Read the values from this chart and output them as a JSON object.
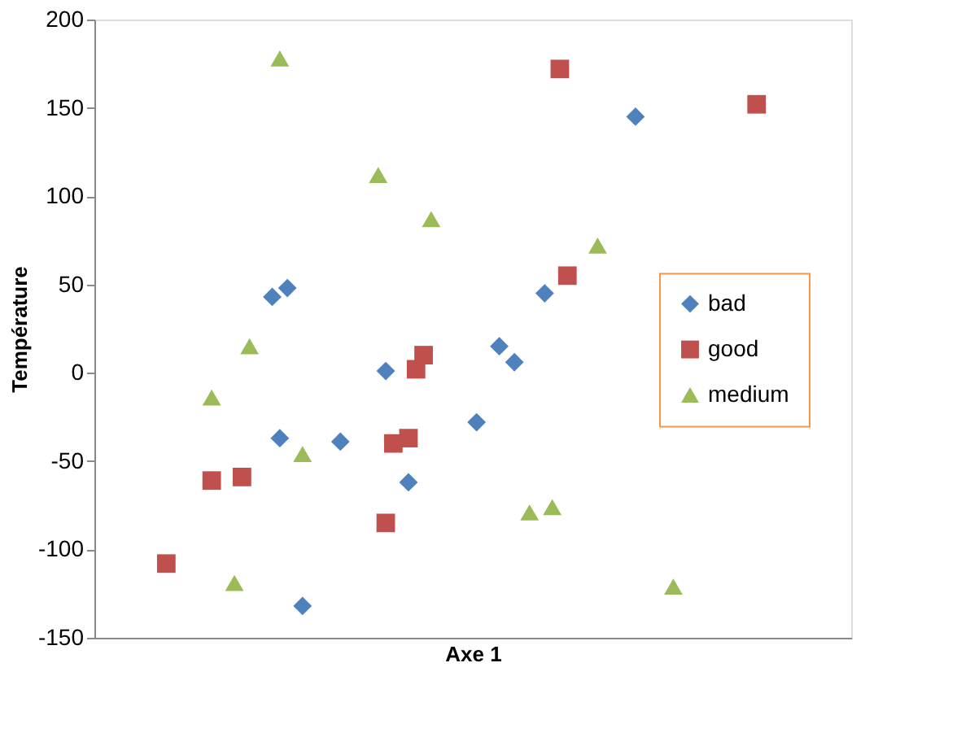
{
  "chart_data": {
    "type": "scatter",
    "xlabel": "Axe 1",
    "ylabel": "Température",
    "categories": [
      null,
      null,
      null,
      null,
      null,
      null,
      null,
      null,
      null,
      null,
      null,
      null,
      null,
      null,
      null,
      null,
      null,
      null,
      null,
      null,
      null,
      null,
      null,
      null,
      null,
      null,
      null,
      null,
      null,
      null,
      null,
      null,
      null,
      null,
      null,
      null,
      null,
      null,
      null,
      null,
      null,
      null,
      null,
      null,
      null,
      null,
      null,
      null,
      null,
      null,
      null,
      null,
      null,
      null,
      null,
      null,
      null,
      null,
      null,
      null,
      null,
      null,
      null,
      null,
      null,
      null,
      null,
      null,
      null,
      null,
      null,
      null,
      null,
      null,
      null,
      null,
      null,
      null,
      null,
      null,
      null,
      null,
      null,
      null,
      null,
      null,
      null,
      null,
      null,
      null,
      null,
      null,
      null,
      null,
      null,
      null,
      null,
      null,
      null,
      null
    ],
    "ylim": [
      -150,
      200
    ],
    "yticks": [
      -150,
      -100,
      -50,
      0,
      50,
      100,
      150,
      200
    ],
    "tick_labels": "y",
    "grid": false,
    "legend": "right",
    "series": [
      {
        "name": "bad",
        "color": "#4f81bd",
        "marker": "diamond",
        "values": [
          null,
          null,
          null,
          null,
          null,
          null,
          null,
          null,
          null,
          null,
          null,
          null,
          null,
          null,
          null,
          null,
          null,
          null,
          null,
          null,
          null,
          null,
          null,
          43,
          -37,
          48,
          null,
          -132,
          null,
          null,
          null,
          null,
          -39,
          null,
          null,
          null,
          null,
          null,
          1,
          null,
          null,
          -62,
          null,
          null,
          null,
          null,
          null,
          null,
          null,
          null,
          -28,
          null,
          null,
          15,
          null,
          6,
          null,
          null,
          null,
          45,
          null,
          null,
          null,
          null,
          null,
          null,
          null,
          null,
          null,
          null,
          null,
          145,
          null,
          null,
          null,
          null,
          null,
          null,
          null,
          null,
          null,
          null,
          null,
          null,
          null,
          null,
          null,
          null,
          null,
          null,
          null,
          null,
          null,
          null,
          null,
          null,
          null,
          null,
          null,
          null
        ]
      },
      {
        "name": "good",
        "color": "#c0504d",
        "marker": "square",
        "values": [
          null,
          null,
          null,
          null,
          null,
          null,
          null,
          null,
          null,
          -108,
          null,
          null,
          null,
          null,
          null,
          -61,
          null,
          null,
          null,
          -59,
          null,
          null,
          null,
          null,
          null,
          null,
          null,
          null,
          null,
          null,
          null,
          null,
          null,
          null,
          null,
          null,
          null,
          null,
          -85,
          -40,
          null,
          -37,
          2,
          10,
          null,
          null,
          null,
          null,
          null,
          null,
          null,
          null,
          null,
          null,
          null,
          null,
          null,
          null,
          null,
          null,
          null,
          172,
          55,
          null,
          null,
          null,
          null,
          null,
          null,
          null,
          null,
          null,
          null,
          null,
          null,
          null,
          null,
          null,
          null,
          null,
          null,
          null,
          null,
          null,
          null,
          null,
          null,
          152,
          null,
          null,
          null,
          null,
          null,
          null,
          null,
          null,
          null,
          null,
          null,
          null
        ]
      },
      {
        "name": "medium",
        "color": "#9bbb59",
        "marker": "triangle",
        "values": [
          null,
          null,
          null,
          null,
          null,
          null,
          null,
          null,
          null,
          null,
          null,
          null,
          null,
          null,
          null,
          -14,
          null,
          null,
          -119,
          null,
          15,
          null,
          null,
          null,
          178,
          null,
          null,
          -46,
          null,
          null,
          null,
          null,
          null,
          null,
          null,
          null,
          null,
          112,
          null,
          null,
          null,
          null,
          null,
          null,
          87,
          null,
          null,
          null,
          null,
          null,
          null,
          null,
          null,
          null,
          null,
          null,
          null,
          -79,
          null,
          null,
          -76,
          null,
          null,
          null,
          null,
          null,
          72,
          null,
          null,
          null,
          null,
          null,
          null,
          null,
          null,
          null,
          -121,
          null,
          null,
          null,
          null,
          null,
          null,
          null,
          null,
          null,
          null,
          null,
          null,
          null,
          null,
          null,
          null,
          null,
          null,
          null,
          null,
          null,
          null,
          null
        ]
      }
    ]
  }
}
